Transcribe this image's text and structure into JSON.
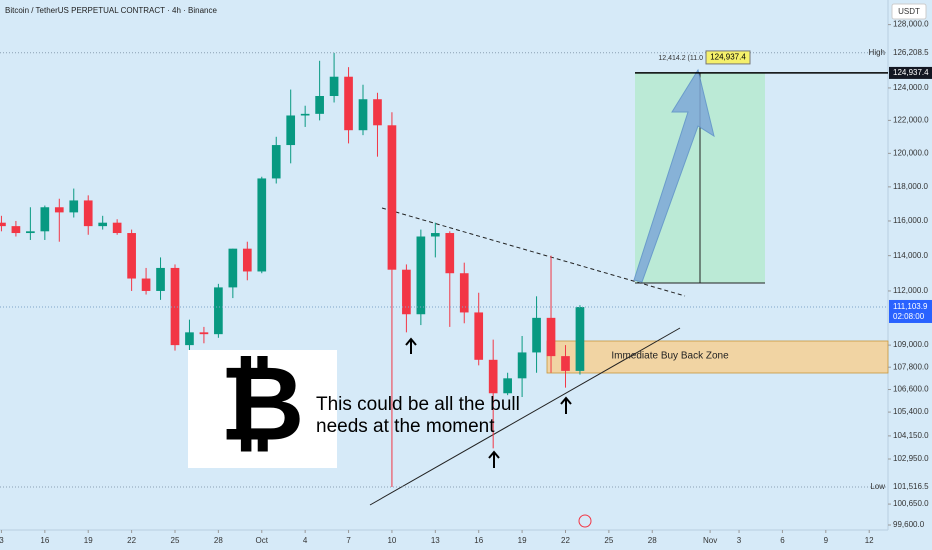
{
  "chart_data": {
    "type": "candlestick",
    "title": "Bitcoin / TetherUS PERPETUAL CONTRACT · 4h · Binance",
    "currency": "USDT",
    "x": [
      0,
      1,
      2,
      3,
      4,
      5,
      6,
      7,
      8,
      9,
      10,
      11,
      12,
      13,
      14,
      15,
      16,
      17,
      18,
      19,
      20,
      21,
      22,
      23,
      24,
      25,
      26,
      27,
      28,
      29,
      30,
      31,
      32,
      33,
      34,
      35,
      36,
      37,
      38,
      39,
      40
    ],
    "open": [
      115900,
      115700,
      115300,
      115400,
      116800,
      116500,
      117200,
      115700,
      115900,
      115300,
      112700,
      112000,
      113300,
      109000,
      109700,
      109600,
      112200,
      114400,
      113100,
      118500,
      120500,
      122300,
      122400,
      123500,
      124700,
      121400,
      123300,
      121700,
      113200,
      110700,
      115100,
      115300,
      113000,
      110800,
      108200,
      106400,
      107200,
      108600,
      110500,
      108400,
      107600
    ],
    "high": [
      116300,
      116000,
      116800,
      116900,
      117300,
      117900,
      117500,
      116300,
      116100,
      115500,
      113300,
      113900,
      113500,
      110400,
      110000,
      112400,
      114400,
      114800,
      118600,
      121000,
      123900,
      122900,
      125700,
      126200,
      125300,
      124200,
      123700,
      122500,
      113500,
      115500,
      115900,
      115400,
      113600,
      111900,
      109300,
      107500,
      109500,
      111700,
      114000,
      109000,
      111200
    ],
    "low": [
      115400,
      115100,
      114900,
      114900,
      114800,
      116200,
      115200,
      115500,
      115200,
      112000,
      111800,
      111500,
      108700,
      108600,
      109100,
      109400,
      111600,
      112600,
      113000,
      118200,
      119400,
      121600,
      122000,
      123100,
      120600,
      121100,
      119800,
      101516.5,
      109700,
      110100,
      113900,
      110000,
      110200,
      107900,
      103500,
      106300,
      106200,
      107500,
      107500,
      106700,
      107400
    ],
    "close": [
      115700,
      115300,
      115400,
      116800,
      116500,
      117200,
      115700,
      115900,
      115300,
      112700,
      112000,
      113300,
      109000,
      109700,
      109600,
      112200,
      114400,
      113100,
      118500,
      120500,
      122300,
      122400,
      123500,
      124700,
      121400,
      123300,
      121700,
      113200,
      110700,
      115100,
      115300,
      113000,
      110800,
      108200,
      106400,
      107200,
      108600,
      110500,
      108400,
      107600,
      111100
    ],
    "up_color": "#089981",
    "down_color": "#f23645",
    "log_scale": true,
    "grid": false,
    "xlim": [
      -0.1,
      61.3
    ],
    "ylim": [
      99350,
      129590
    ],
    "xticks": [
      {
        "value": 0,
        "label": "3"
      },
      {
        "value": 3,
        "label": "16"
      },
      {
        "value": 6,
        "label": "19"
      },
      {
        "value": 9,
        "label": "22"
      },
      {
        "value": 12,
        "label": "25"
      },
      {
        "value": 15,
        "label": "28"
      },
      {
        "value": 18,
        "label": "Oct"
      },
      {
        "value": 21,
        "label": "4"
      },
      {
        "value": 24,
        "label": "7"
      },
      {
        "value": 27,
        "label": "10"
      },
      {
        "value": 30,
        "label": "13"
      },
      {
        "value": 33,
        "label": "16"
      },
      {
        "value": 36,
        "label": "19"
      },
      {
        "value": 39,
        "label": "22"
      },
      {
        "value": 42,
        "label": "25"
      },
      {
        "value": 45,
        "label": "28"
      },
      {
        "value": 49,
        "label": "Nov"
      },
      {
        "value": 51,
        "label": "3"
      },
      {
        "value": 54,
        "label": "6"
      },
      {
        "value": 57,
        "label": "9"
      },
      {
        "value": 60,
        "label": "12"
      }
    ],
    "yticks": [
      {
        "value": 128000,
        "label": "128,000.0"
      },
      {
        "value": 124000,
        "label": "124,000.0"
      },
      {
        "value": 122000,
        "label": "122,000.0"
      },
      {
        "value": 120000,
        "label": "120,000.0"
      },
      {
        "value": 118000,
        "label": "118,000.0"
      },
      {
        "value": 116000,
        "label": "116,000.0"
      },
      {
        "value": 114000,
        "label": "114,000.0"
      },
      {
        "value": 112000,
        "label": "112,000.0"
      },
      {
        "value": 109000,
        "label": "109,000.0"
      },
      {
        "value": 107800,
        "label": "107,800.0"
      },
      {
        "value": 106600,
        "label": "106,600.0"
      },
      {
        "value": 105400,
        "label": "105,400.0"
      },
      {
        "value": 104150,
        "label": "104,150.0"
      },
      {
        "value": 102950,
        "label": "102,950.0"
      },
      {
        "value": 100650,
        "label": "100,650.0"
      },
      {
        "value": 99600,
        "label": "99,600.0"
      }
    ],
    "high_label": "High",
    "high_price": {
      "value": 126208.5,
      "label": "126,208.5"
    },
    "low_label": "Low",
    "low_price": {
      "value": 101516.5,
      "label": "101,516.5"
    },
    "current_price": {
      "value": 111103.9,
      "label": "111,103.9"
    },
    "countdown": "02:08:00",
    "target_price": {
      "value": 124937.4,
      "label": "124,937.4"
    },
    "target_info": "12,414.2 (11.0",
    "zone_label": "Immediate Buy Back Zone",
    "logo": "₿",
    "caption": [
      "This could be all the bull",
      "needs at the moment"
    ]
  }
}
